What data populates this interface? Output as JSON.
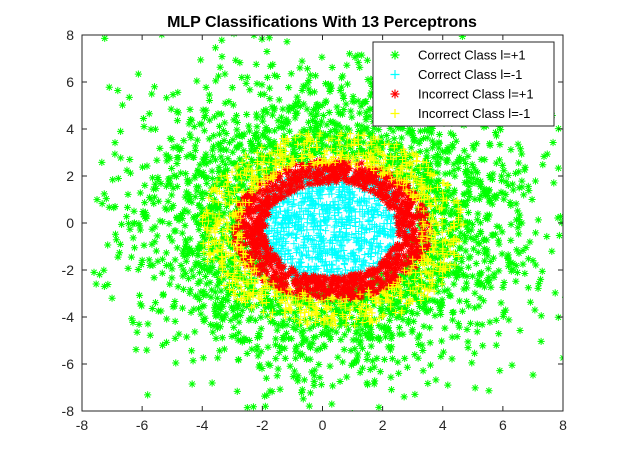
{
  "chart_data": {
    "type": "scatter",
    "title": "MLP Classifications With 13 Perceptrons",
    "xlabel": "",
    "ylabel": "",
    "xlim": [
      -8,
      8
    ],
    "ylim": [
      -8,
      8
    ],
    "xticks": [
      "-8",
      "-6",
      "-4",
      "-2",
      "0",
      "2",
      "4",
      "6",
      "8"
    ],
    "yticks": [
      "-8",
      "-6",
      "-4",
      "-2",
      "0",
      "2",
      "4",
      "6",
      "8"
    ],
    "grid": false,
    "legend_position": "top-right",
    "series": [
      {
        "name": "Correct Class l=+1",
        "color": "#00ff00",
        "marker": "asterisk",
        "distribution": {
          "type": "annulus",
          "center": [
            0.3,
            0.0
          ],
          "r_inner": 2.6,
          "sigma": 2.3,
          "count": 2600
        },
        "sample_points": [
          [
            -7.6,
            -2.1
          ],
          [
            -7.0,
            -3.2
          ],
          [
            -1.9,
            -7.8
          ],
          [
            0.9,
            7.2
          ],
          [
            7.0,
            -1.6
          ],
          [
            6.5,
            -0.2
          ],
          [
            -6.9,
            0.7
          ],
          [
            -2.5,
            6.2
          ]
        ]
      },
      {
        "name": "Correct Class l=-1",
        "color": "#00ffff",
        "marker": "plus",
        "distribution": {
          "type": "ellipse",
          "center": [
            0.3,
            -0.1
          ],
          "rx": 2.6,
          "ry": 2.5,
          "count": 1100
        }
      },
      {
        "name": "Incorrect Class l=+1",
        "color": "#ff0000",
        "marker": "asterisk",
        "distribution": {
          "type": "ring",
          "center": [
            0.3,
            -0.3
          ],
          "rx_in": 2.2,
          "rx_out": 3.3,
          "ry_in": 2.0,
          "ry_out": 3.0,
          "count": 1100
        }
      },
      {
        "name": "Incorrect Class l=-1",
        "color": "#ffff00",
        "marker": "plus",
        "distribution": {
          "type": "ring",
          "center": [
            0.3,
            -0.3
          ],
          "rx_in": 3.0,
          "rx_out": 4.4,
          "ry_in": 2.8,
          "ry_out": 4.2,
          "count": 900
        }
      }
    ]
  }
}
